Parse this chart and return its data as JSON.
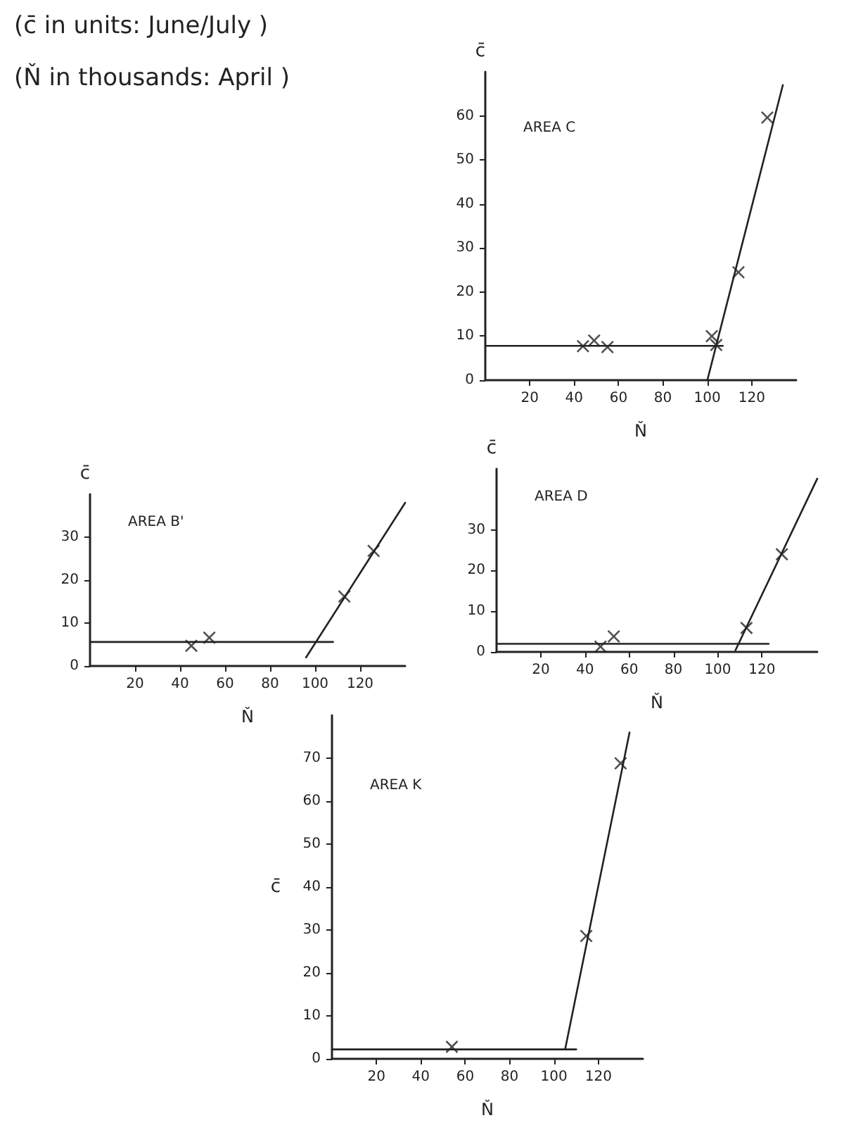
{
  "chart_data": [
    {
      "type": "scatter",
      "title": "AREA C",
      "xlabel": "Ň",
      "ylabel": "c̄",
      "annotations": [
        "(c̄ in units: June/July )",
        "(Ň in thousands: April )"
      ],
      "xlim": [
        0,
        140
      ],
      "ylim": [
        0,
        70
      ],
      "xticks": [
        20,
        40,
        60,
        80,
        100,
        120
      ],
      "yticks": [
        0,
        10,
        20,
        30,
        40,
        50,
        60
      ],
      "line_style": "solid",
      "series": [
        {
          "marker": "cross",
          "color": "#222222",
          "x": [
            44,
            49,
            55,
            102,
            104,
            114,
            127
          ],
          "values": [
            7.7,
            9,
            7.5,
            10,
            8,
            24.5,
            59.6
          ]
        },
        {
          "type": "line",
          "marker": "none",
          "color": "#222222",
          "x": [
            0,
            107
          ],
          "values": [
            7.8,
            7.8
          ]
        },
        {
          "type": "line",
          "marker": "none",
          "color": "#222222",
          "x": [
            100,
            134
          ],
          "values": [
            0,
            67
          ]
        }
      ]
    },
    {
      "type": "scatter",
      "title": "AREA B'",
      "xlabel": "Ň",
      "ylabel": "c̄",
      "xlim": [
        0,
        140
      ],
      "ylim": [
        0,
        40
      ],
      "xticks": [
        20,
        40,
        60,
        80,
        100,
        120
      ],
      "yticks": [
        0,
        10,
        20,
        30
      ],
      "line_style": "solid",
      "series": [
        {
          "marker": "cross",
          "color": "#222222",
          "x": [
            45,
            53,
            113,
            126
          ],
          "values": [
            4.7,
            6.6,
            16.2,
            26.8
          ]
        },
        {
          "type": "line",
          "marker": "none",
          "color": "#222222",
          "x": [
            0,
            108
          ],
          "values": [
            5.6,
            5.6
          ]
        },
        {
          "type": "line",
          "marker": "none",
          "color": "#222222",
          "x": [
            96,
            140
          ],
          "values": [
            2,
            38
          ]
        }
      ]
    },
    {
      "type": "scatter",
      "title": "AREA D",
      "xlabel": "Ň",
      "ylabel": "c̄",
      "xlim": [
        0,
        145
      ],
      "ylim": [
        0,
        45
      ],
      "xticks": [
        20,
        40,
        60,
        80,
        100,
        120
      ],
      "yticks": [
        0,
        10,
        20,
        30
      ],
      "line_style": "solid",
      "series": [
        {
          "marker": "cross",
          "color": "#222222",
          "x": [
            47,
            53,
            113,
            129
          ],
          "values": [
            1.3,
            3.8,
            5.9,
            24
          ]
        },
        {
          "type": "line",
          "marker": "none",
          "color": "#222222",
          "x": [
            0,
            123
          ],
          "values": [
            2,
            2
          ]
        },
        {
          "type": "line",
          "marker": "none",
          "color": "#222222",
          "x": [
            108,
            145
          ],
          "values": [
            0.4,
            42.6
          ]
        }
      ]
    },
    {
      "type": "scatter",
      "title": "AREA K",
      "xlabel": "Ň",
      "ylabel": "c̄",
      "xlim": [
        0,
        140
      ],
      "ylim": [
        0,
        80
      ],
      "xticks": [
        20,
        40,
        60,
        80,
        100,
        120
      ],
      "yticks": [
        0,
        10,
        20,
        30,
        40,
        50,
        60,
        70
      ],
      "line_style": "solid",
      "series": [
        {
          "marker": "cross",
          "color": "#222222",
          "x": [
            54,
            114.5,
            130
          ],
          "values": [
            2.8,
            28.6,
            68.8
          ]
        },
        {
          "type": "line",
          "marker": "none",
          "color": "#222222",
          "x": [
            0,
            110
          ],
          "values": [
            2.2,
            2.2
          ]
        },
        {
          "type": "line",
          "marker": "none",
          "color": "#222222",
          "x": [
            105,
            134
          ],
          "values": [
            2.2,
            76
          ]
        }
      ]
    }
  ]
}
